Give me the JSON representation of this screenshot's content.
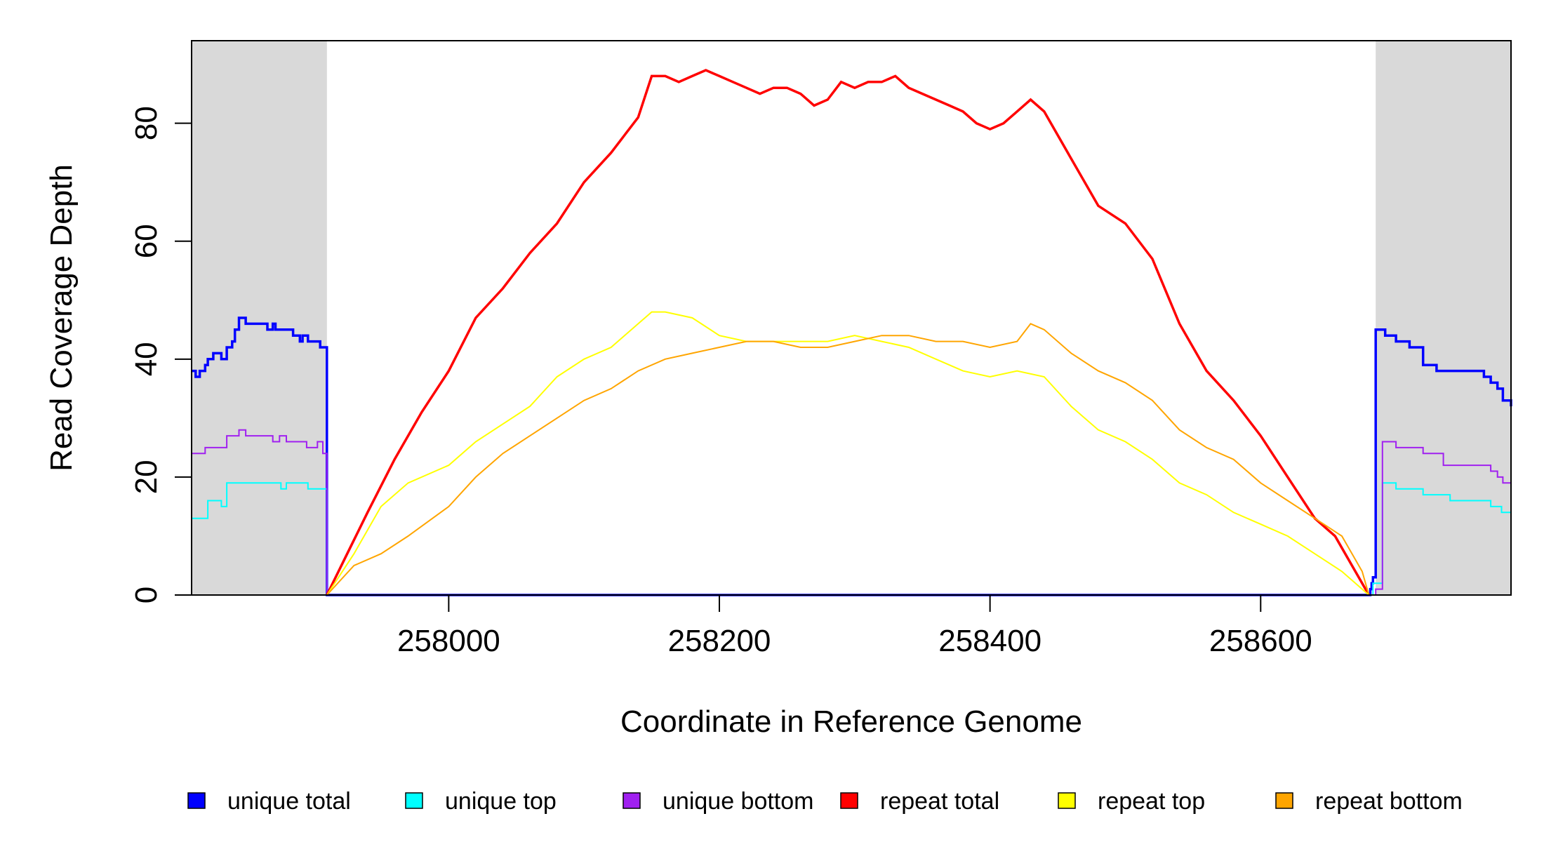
{
  "chart_data": {
    "type": "line",
    "title": "",
    "xlabel": "Coordinate in Reference Genome",
    "ylabel": "Read Coverage Depth",
    "xlim": [
      257810,
      258785
    ],
    "ylim": [
      0,
      94
    ],
    "x_ticks": [
      258000,
      258200,
      258400,
      258600
    ],
    "x_tick_labels": [
      "258000",
      "258200",
      "258400",
      "258600"
    ],
    "y_ticks": [
      0,
      20,
      40,
      60,
      80
    ],
    "y_tick_labels": [
      "0",
      "20",
      "40",
      "60",
      "80"
    ],
    "grid": false,
    "legend_position": "bottom",
    "shaded_regions": [
      {
        "x_start": 257810,
        "x_end": 257910,
        "color": "#d9d9d9"
      },
      {
        "x_start": 258685,
        "x_end": 258785,
        "color": "#d9d9d9"
      }
    ],
    "legend": [
      {
        "label": "unique total",
        "color": "#0000ff"
      },
      {
        "label": "unique top",
        "color": "#00ffff"
      },
      {
        "label": "unique bottom",
        "color": "#a020f0"
      },
      {
        "label": "repeat total",
        "color": "#ff0000"
      },
      {
        "label": "repeat top",
        "color": "#ffff00"
      },
      {
        "label": "repeat bottom",
        "color": "#ffa500"
      }
    ],
    "series": [
      {
        "name": "unique total",
        "color": "#0000ff",
        "width": 3.5,
        "step": true,
        "x": [
          257810,
          257813,
          257816,
          257820,
          257822,
          257826,
          257832,
          257836,
          257840,
          257842,
          257845,
          257850,
          257854,
          257866,
          257870,
          257872,
          257875,
          257880,
          257885,
          257890,
          257892,
          257896,
          257903,
          257905,
          257908,
          257910,
          258680,
          258681,
          258682,
          258683,
          258684,
          258685,
          258692,
          258700,
          258710,
          258720,
          258730,
          258765,
          258770,
          258775,
          258779,
          258785
        ],
        "y": [
          38,
          37,
          38,
          39,
          40,
          41,
          40,
          42,
          43,
          45,
          47,
          46,
          46,
          45,
          46,
          45,
          45,
          45,
          44,
          43,
          44,
          43,
          43,
          42,
          42,
          0,
          0,
          1,
          2,
          3,
          3,
          45,
          44,
          43,
          42,
          39,
          38,
          37,
          36,
          35,
          33,
          32
        ]
      },
      {
        "name": "unique top",
        "color": "#00ffff",
        "width": 2,
        "step": true,
        "x": [
          257810,
          257818,
          257822,
          257828,
          257832,
          257836,
          257870,
          257876,
          257880,
          257896,
          257903,
          257910,
          258680,
          258683,
          258685,
          258690,
          258700,
          258720,
          258740,
          258770,
          258778,
          258785
        ],
        "y": [
          13,
          13,
          16,
          16,
          15,
          19,
          19,
          18,
          19,
          18,
          18,
          0,
          0,
          2,
          2,
          19,
          18,
          17,
          16,
          15,
          14,
          14
        ]
      },
      {
        "name": "unique bottom",
        "color": "#a020f0",
        "width": 2,
        "step": true,
        "x": [
          257810,
          257815,
          257820,
          257830,
          257836,
          257840,
          257845,
          257850,
          257866,
          257870,
          257875,
          257880,
          257895,
          257903,
          257907,
          257910,
          258680,
          258685,
          258690,
          258700,
          258720,
          258735,
          258765,
          258770,
          258775,
          258779,
          258785
        ],
        "y": [
          24,
          24,
          25,
          25,
          27,
          27,
          28,
          27,
          27,
          26,
          27,
          26,
          25,
          26,
          24,
          0,
          0,
          1,
          26,
          25,
          24,
          22,
          22,
          21,
          20,
          19,
          18
        ]
      },
      {
        "name": "repeat total",
        "color": "#ff0000",
        "width": 3.5,
        "step": false,
        "x": [
          257910,
          257925,
          257940,
          257960,
          257980,
          258000,
          258020,
          258040,
          258060,
          258080,
          258100,
          258120,
          258140,
          258150,
          258160,
          258170,
          258180,
          258190,
          258200,
          258210,
          258220,
          258230,
          258240,
          258250,
          258260,
          258270,
          258280,
          258290,
          258300,
          258310,
          258320,
          258330,
          258340,
          258350,
          258360,
          258370,
          258380,
          258390,
          258400,
          258410,
          258420,
          258430,
          258440,
          258460,
          258480,
          258500,
          258520,
          258540,
          258560,
          258580,
          258600,
          258620,
          258640,
          258655,
          258665,
          258675,
          258680
        ],
        "y": [
          0,
          7,
          14,
          23,
          31,
          38,
          47,
          52,
          58,
          63,
          70,
          75,
          81,
          88,
          88,
          87,
          88,
          89,
          88,
          87,
          86,
          85,
          86,
          86,
          85,
          83,
          84,
          87,
          86,
          87,
          87,
          88,
          86,
          85,
          84,
          83,
          82,
          80,
          79,
          80,
          82,
          84,
          82,
          74,
          66,
          63,
          57,
          46,
          38,
          33,
          27,
          20,
          13,
          10,
          6,
          2,
          0
        ]
      },
      {
        "name": "repeat top",
        "color": "#ffff00",
        "width": 2,
        "step": false,
        "x": [
          257910,
          257930,
          257950,
          257970,
          258000,
          258020,
          258040,
          258060,
          258080,
          258100,
          258120,
          258140,
          258150,
          258160,
          258180,
          258200,
          258220,
          258240,
          258260,
          258280,
          258300,
          258320,
          258340,
          258360,
          258380,
          258400,
          258420,
          258440,
          258460,
          258480,
          258500,
          258520,
          258540,
          258560,
          258580,
          258600,
          258620,
          258640,
          258660,
          258675,
          258680
        ],
        "y": [
          0,
          7,
          15,
          19,
          22,
          26,
          29,
          32,
          37,
          40,
          42,
          46,
          48,
          48,
          47,
          44,
          43,
          43,
          43,
          43,
          44,
          43,
          42,
          40,
          38,
          37,
          38,
          37,
          32,
          28,
          26,
          23,
          19,
          17,
          14,
          12,
          10,
          7,
          4,
          1,
          0
        ]
      },
      {
        "name": "repeat bottom",
        "color": "#ffa500",
        "width": 2,
        "step": false,
        "x": [
          257910,
          257930,
          257950,
          257970,
          258000,
          258020,
          258040,
          258060,
          258080,
          258100,
          258120,
          258140,
          258160,
          258180,
          258200,
          258220,
          258240,
          258260,
          258280,
          258300,
          258320,
          258340,
          258360,
          258380,
          258400,
          258420,
          258430,
          258440,
          258460,
          258480,
          258500,
          258520,
          258540,
          258560,
          258580,
          258600,
          258620,
          258640,
          258660,
          258675,
          258680
        ],
        "y": [
          0,
          5,
          7,
          10,
          15,
          20,
          24,
          27,
          30,
          33,
          35,
          38,
          40,
          41,
          42,
          43,
          43,
          42,
          42,
          43,
          44,
          44,
          43,
          43,
          42,
          43,
          46,
          45,
          41,
          38,
          36,
          33,
          28,
          25,
          23,
          19,
          16,
          13,
          10,
          4,
          0
        ]
      }
    ]
  }
}
